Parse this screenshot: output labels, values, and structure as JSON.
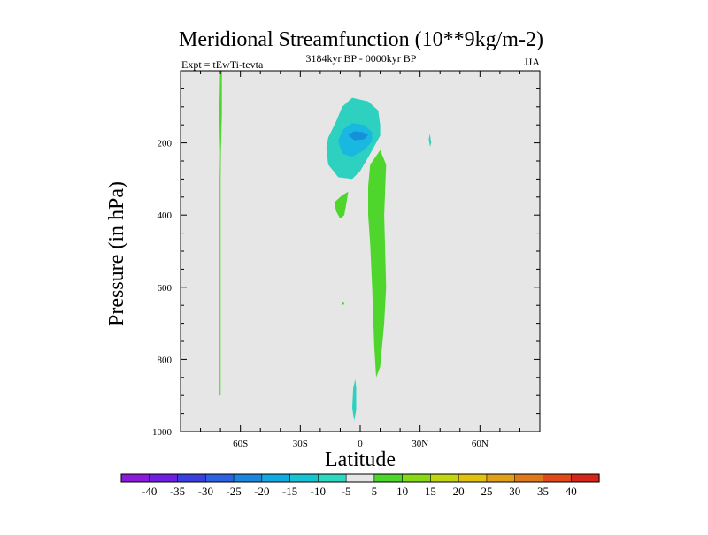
{
  "chart_data": {
    "type": "contour",
    "title": "Meridional Streamfunction (10**9kg/m-2)",
    "subtitle": "3184kyr BP - 0000kyr BP",
    "left_label": "Expt = tEwTi-tevta",
    "right_label": "JJA",
    "xlabel": "Latitude",
    "ylabel": "Pressure (in hPa)",
    "xlim": [
      -90,
      90
    ],
    "ylim": [
      1000,
      0
    ],
    "y_ticks": [
      {
        "value": 200,
        "label": "200"
      },
      {
        "value": 400,
        "label": "400"
      },
      {
        "value": 600,
        "label": "600"
      },
      {
        "value": 800,
        "label": "800"
      },
      {
        "value": 1000,
        "label": "1000"
      }
    ],
    "x_ticks": [
      {
        "value": -60,
        "label": "60S"
      },
      {
        "value": -30,
        "label": "30S"
      },
      {
        "value": 0,
        "label": "0"
      },
      {
        "value": 30,
        "label": "30N"
      },
      {
        "value": 60,
        "label": "60N"
      }
    ],
    "background_color": "#e6e6e6",
    "features": [
      {
        "name": "sh-high-lat-positive-band",
        "level": 5,
        "color": "#4fd62d",
        "points": [
          [
            -70.2,
            0
          ],
          [
            -69.3,
            0
          ],
          [
            -69.3,
            120
          ],
          [
            -69.8,
            230
          ],
          [
            -69.9,
            300
          ],
          [
            -69.9,
            900
          ],
          [
            -70.4,
            900
          ],
          [
            -70.4,
            300
          ],
          [
            -70.2,
            230
          ],
          [
            -70.6,
            120
          ]
        ]
      },
      {
        "name": "tropical-negative-core-outer",
        "level": -10,
        "color": "#2ed0c0",
        "points": [
          [
            -17,
            215
          ],
          [
            -16,
            185
          ],
          [
            -12,
            140
          ],
          [
            -9,
            100
          ],
          [
            -4,
            75
          ],
          [
            4,
            85
          ],
          [
            9,
            110
          ],
          [
            10,
            150
          ],
          [
            10,
            180
          ],
          [
            7,
            210
          ],
          [
            4,
            240
          ],
          [
            0,
            278
          ],
          [
            -4,
            300
          ],
          [
            -11,
            295
          ],
          [
            -16,
            260
          ]
        ]
      },
      {
        "name": "tropical-negative-core-mid",
        "level": -15,
        "color": "#19b8e0",
        "points": [
          [
            -11,
            195
          ],
          [
            -9,
            165
          ],
          [
            -4,
            145
          ],
          [
            2,
            150
          ],
          [
            6,
            170
          ],
          [
            6,
            195
          ],
          [
            2,
            220
          ],
          [
            -4,
            238
          ],
          [
            -9,
            230
          ]
        ]
      },
      {
        "name": "tropical-negative-core-inner",
        "level": -20,
        "color": "#1690d8",
        "points": [
          [
            -6,
            178
          ],
          [
            -3,
            168
          ],
          [
            1,
            170
          ],
          [
            4,
            178
          ],
          [
            2,
            190
          ],
          [
            -3,
            193
          ]
        ]
      },
      {
        "name": "nh-subtropical-negative-patch",
        "level": -10,
        "color": "#2ed0c0",
        "points": [
          [
            34.9,
            175
          ],
          [
            35.3,
            190
          ],
          [
            35.6,
            200
          ],
          [
            35.0,
            210
          ],
          [
            34.3,
            190
          ]
        ]
      },
      {
        "name": "sh-tropical-positive-patch",
        "level": 5,
        "color": "#4fd62d",
        "points": [
          [
            -13,
            365
          ],
          [
            -9,
            345
          ],
          [
            -6,
            335
          ],
          [
            -7,
            370
          ],
          [
            -8,
            400
          ],
          [
            -10,
            410
          ],
          [
            -12,
            390
          ]
        ]
      },
      {
        "name": "nh-tropical-positive-tongue",
        "level": 5,
        "color": "#4fd62d",
        "points": [
          [
            4,
            320
          ],
          [
            5,
            260
          ],
          [
            10,
            220
          ],
          [
            13,
            260
          ],
          [
            12,
            400
          ],
          [
            12.5,
            500
          ],
          [
            13,
            600
          ],
          [
            12,
            700
          ],
          [
            10,
            820
          ],
          [
            8,
            850
          ],
          [
            7,
            760
          ],
          [
            6,
            600
          ],
          [
            5,
            480
          ],
          [
            4,
            400
          ]
        ]
      },
      {
        "name": "small-positive-dot",
        "level": 5,
        "color": "#4fd62d",
        "points": [
          [
            -8.5,
            640
          ],
          [
            -8.0,
            645
          ],
          [
            -8.5,
            650
          ],
          [
            -9.0,
            645
          ]
        ]
      },
      {
        "name": "near-surface-negative-patch",
        "level": -10,
        "color": "#2ed0c0",
        "points": [
          [
            -3.5,
            880
          ],
          [
            -2.5,
            855
          ],
          [
            -2.0,
            880
          ],
          [
            -2.0,
            940
          ],
          [
            -3.0,
            970
          ],
          [
            -4.0,
            935
          ]
        ]
      }
    ],
    "colorbar": {
      "labels": [
        "-40",
        "-35",
        "-30",
        "-25",
        "-20",
        "-15",
        "-10",
        "-5",
        "5",
        "10",
        "15",
        "20",
        "25",
        "30",
        "35",
        "40"
      ],
      "colors": [
        "#8c1bd9",
        "#6e1fe0",
        "#3b3fe0",
        "#2c62e2",
        "#1a86dc",
        "#12a8e0",
        "#17c4d4",
        "#2ed8c0",
        "#e6e6e6",
        "#4fd62d",
        "#86d914",
        "#bfd611",
        "#e0c20f",
        "#e0a018",
        "#e0781c",
        "#e04a1a",
        "#d4261a"
      ]
    }
  }
}
